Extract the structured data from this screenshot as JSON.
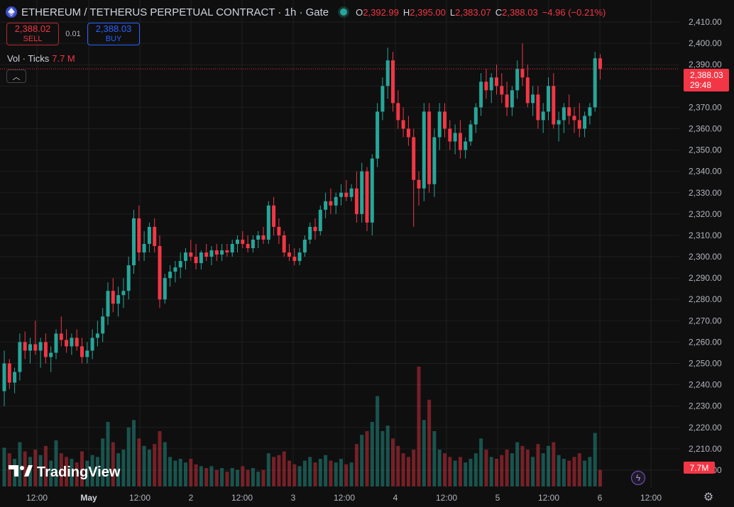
{
  "header": {
    "title": "ETHEREUM / TETHERUS PERPETUAL CONTRACT · 1h · Gate",
    "ohlc": [
      {
        "key": "O",
        "value": "2,392.99"
      },
      {
        "key": "H",
        "value": "2,395.00"
      },
      {
        "key": "L",
        "value": "2,383.07"
      },
      {
        "key": "C",
        "value": "2,388.03"
      }
    ],
    "change": "−4.96 (−0.21%)"
  },
  "trade": {
    "sell_price": "2,388.02",
    "sell_label": "SELL",
    "spread": "0.01",
    "buy_price": "2,388.03",
    "buy_label": "BUY"
  },
  "volume_legend": {
    "label": "Vol · Ticks",
    "value": "7.7 M"
  },
  "price_badge": {
    "price": "2,388.03",
    "countdown": "29:48"
  },
  "volume_badge": "7.7M",
  "brand": "TradingView",
  "colors": {
    "up": "#26a69a",
    "down": "#f23645",
    "background": "#0f0f0f",
    "grid": "#1f1f1f"
  },
  "icons": [
    "ethereum-icon",
    "live-status-icon",
    "collapse-icon",
    "flash-icon",
    "settings-icon"
  ],
  "chart_data": {
    "type": "candlestick",
    "interval": "1h",
    "price_axis_ticks": [
      "2,410.00",
      "2,400.00",
      "2,390.00",
      "2,380.00",
      "2,370.00",
      "2,360.00",
      "2,350.00",
      "2,340.00",
      "2,330.00",
      "2,320.00",
      "2,310.00",
      "2,300.00",
      "2,290.00",
      "2,280.00",
      "2,270.00",
      "2,260.00",
      "2,250.00",
      "2,240.00",
      "2,230.00",
      "2,220.00",
      "2,210.00",
      "2,200.00"
    ],
    "time_axis_ticks": [
      "12:00",
      "May",
      "12:00",
      "2",
      "12:00",
      "3",
      "12:00",
      "4",
      "12:00",
      "5",
      "12:00",
      "6",
      "12:00"
    ],
    "ylim": [
      2200,
      2410
    ],
    "last_price": 2388.03,
    "candles": [
      {
        "o": 2237,
        "h": 2256,
        "l": 2230,
        "c": 2250,
        "v": 2.1
      },
      {
        "o": 2250,
        "h": 2252,
        "l": 2238,
        "c": 2241,
        "v": 1.8
      },
      {
        "o": 2241,
        "h": 2248,
        "l": 2236,
        "c": 2246,
        "v": 1.5
      },
      {
        "o": 2246,
        "h": 2264,
        "l": 2242,
        "c": 2260,
        "v": 2.4
      },
      {
        "o": 2260,
        "h": 2265,
        "l": 2252,
        "c": 2256,
        "v": 1.9
      },
      {
        "o": 2256,
        "h": 2262,
        "l": 2250,
        "c": 2259,
        "v": 1.6
      },
      {
        "o": 2259,
        "h": 2270,
        "l": 2254,
        "c": 2256,
        "v": 2.0
      },
      {
        "o": 2256,
        "h": 2262,
        "l": 2248,
        "c": 2260,
        "v": 1.7
      },
      {
        "o": 2260,
        "h": 2264,
        "l": 2250,
        "c": 2253,
        "v": 2.2
      },
      {
        "o": 2253,
        "h": 2258,
        "l": 2246,
        "c": 2255,
        "v": 1.4
      },
      {
        "o": 2255,
        "h": 2266,
        "l": 2252,
        "c": 2264,
        "v": 2.5
      },
      {
        "o": 2264,
        "h": 2272,
        "l": 2258,
        "c": 2261,
        "v": 1.8
      },
      {
        "o": 2261,
        "h": 2266,
        "l": 2255,
        "c": 2258,
        "v": 1.6
      },
      {
        "o": 2258,
        "h": 2264,
        "l": 2254,
        "c": 2262,
        "v": 1.5
      },
      {
        "o": 2262,
        "h": 2266,
        "l": 2256,
        "c": 2258,
        "v": 1.3
      },
      {
        "o": 2258,
        "h": 2262,
        "l": 2250,
        "c": 2253,
        "v": 1.9
      },
      {
        "o": 2253,
        "h": 2260,
        "l": 2250,
        "c": 2256,
        "v": 1.4
      },
      {
        "o": 2256,
        "h": 2266,
        "l": 2252,
        "c": 2262,
        "v": 1.7
      },
      {
        "o": 2262,
        "h": 2270,
        "l": 2258,
        "c": 2264,
        "v": 1.6
      },
      {
        "o": 2264,
        "h": 2276,
        "l": 2260,
        "c": 2272,
        "v": 2.6
      },
      {
        "o": 2272,
        "h": 2288,
        "l": 2268,
        "c": 2284,
        "v": 3.5
      },
      {
        "o": 2284,
        "h": 2290,
        "l": 2274,
        "c": 2278,
        "v": 2.4
      },
      {
        "o": 2278,
        "h": 2286,
        "l": 2272,
        "c": 2282,
        "v": 1.8
      },
      {
        "o": 2282,
        "h": 2290,
        "l": 2276,
        "c": 2284,
        "v": 2.0
      },
      {
        "o": 2284,
        "h": 2300,
        "l": 2280,
        "c": 2296,
        "v": 3.2
      },
      {
        "o": 2296,
        "h": 2322,
        "l": 2292,
        "c": 2318,
        "v": 3.6
      },
      {
        "o": 2318,
        "h": 2324,
        "l": 2298,
        "c": 2302,
        "v": 2.6
      },
      {
        "o": 2302,
        "h": 2312,
        "l": 2298,
        "c": 2306,
        "v": 2.2
      },
      {
        "o": 2306,
        "h": 2316,
        "l": 2302,
        "c": 2314,
        "v": 2.0
      },
      {
        "o": 2314,
        "h": 2318,
        "l": 2302,
        "c": 2305,
        "v": 2.3
      },
      {
        "o": 2305,
        "h": 2310,
        "l": 2276,
        "c": 2280,
        "v": 3.0
      },
      {
        "o": 2280,
        "h": 2292,
        "l": 2278,
        "c": 2290,
        "v": 2.4
      },
      {
        "o": 2290,
        "h": 2296,
        "l": 2286,
        "c": 2293,
        "v": 1.6
      },
      {
        "o": 2293,
        "h": 2298,
        "l": 2288,
        "c": 2295,
        "v": 1.4
      },
      {
        "o": 2295,
        "h": 2302,
        "l": 2290,
        "c": 2298,
        "v": 1.5
      },
      {
        "o": 2298,
        "h": 2304,
        "l": 2294,
        "c": 2302,
        "v": 1.3
      },
      {
        "o": 2302,
        "h": 2308,
        "l": 2298,
        "c": 2300,
        "v": 1.5
      },
      {
        "o": 2300,
        "h": 2306,
        "l": 2294,
        "c": 2297,
        "v": 1.2
      },
      {
        "o": 2297,
        "h": 2303,
        "l": 2294,
        "c": 2302,
        "v": 1.1
      },
      {
        "o": 2302,
        "h": 2306,
        "l": 2298,
        "c": 2300,
        "v": 1.0
      },
      {
        "o": 2300,
        "h": 2305,
        "l": 2296,
        "c": 2303,
        "v": 1.1
      },
      {
        "o": 2303,
        "h": 2306,
        "l": 2298,
        "c": 2301,
        "v": 0.9
      },
      {
        "o": 2301,
        "h": 2306,
        "l": 2298,
        "c": 2303,
        "v": 1.0
      },
      {
        "o": 2303,
        "h": 2306,
        "l": 2300,
        "c": 2302,
        "v": 0.8
      },
      {
        "o": 2302,
        "h": 2308,
        "l": 2300,
        "c": 2306,
        "v": 1.0
      },
      {
        "o": 2306,
        "h": 2310,
        "l": 2302,
        "c": 2308,
        "v": 0.9
      },
      {
        "o": 2308,
        "h": 2312,
        "l": 2304,
        "c": 2306,
        "v": 1.1
      },
      {
        "o": 2306,
        "h": 2310,
        "l": 2302,
        "c": 2304,
        "v": 0.9
      },
      {
        "o": 2304,
        "h": 2310,
        "l": 2302,
        "c": 2308,
        "v": 1.0
      },
      {
        "o": 2308,
        "h": 2312,
        "l": 2304,
        "c": 2310,
        "v": 0.8
      },
      {
        "o": 2310,
        "h": 2314,
        "l": 2306,
        "c": 2308,
        "v": 0.9
      },
      {
        "o": 2308,
        "h": 2326,
        "l": 2306,
        "c": 2324,
        "v": 1.8
      },
      {
        "o": 2324,
        "h": 2328,
        "l": 2310,
        "c": 2314,
        "v": 1.6
      },
      {
        "o": 2314,
        "h": 2318,
        "l": 2306,
        "c": 2310,
        "v": 1.7
      },
      {
        "o": 2310,
        "h": 2312,
        "l": 2300,
        "c": 2302,
        "v": 1.9
      },
      {
        "o": 2302,
        "h": 2306,
        "l": 2298,
        "c": 2300,
        "v": 1.4
      },
      {
        "o": 2300,
        "h": 2304,
        "l": 2296,
        "c": 2298,
        "v": 1.2
      },
      {
        "o": 2298,
        "h": 2304,
        "l": 2296,
        "c": 2302,
        "v": 1.1
      },
      {
        "o": 2302,
        "h": 2310,
        "l": 2300,
        "c": 2308,
        "v": 1.4
      },
      {
        "o": 2308,
        "h": 2316,
        "l": 2306,
        "c": 2314,
        "v": 1.6
      },
      {
        "o": 2314,
        "h": 2318,
        "l": 2308,
        "c": 2312,
        "v": 1.3
      },
      {
        "o": 2312,
        "h": 2324,
        "l": 2310,
        "c": 2322,
        "v": 1.5
      },
      {
        "o": 2322,
        "h": 2330,
        "l": 2318,
        "c": 2326,
        "v": 1.7
      },
      {
        "o": 2326,
        "h": 2332,
        "l": 2320,
        "c": 2324,
        "v": 1.4
      },
      {
        "o": 2324,
        "h": 2330,
        "l": 2320,
        "c": 2328,
        "v": 1.3
      },
      {
        "o": 2328,
        "h": 2334,
        "l": 2324,
        "c": 2330,
        "v": 1.5
      },
      {
        "o": 2330,
        "h": 2336,
        "l": 2326,
        "c": 2328,
        "v": 1.2
      },
      {
        "o": 2328,
        "h": 2334,
        "l": 2326,
        "c": 2332,
        "v": 1.3
      },
      {
        "o": 2332,
        "h": 2340,
        "l": 2316,
        "c": 2320,
        "v": 2.3
      },
      {
        "o": 2320,
        "h": 2344,
        "l": 2316,
        "c": 2340,
        "v": 2.8
      },
      {
        "o": 2340,
        "h": 2342,
        "l": 2312,
        "c": 2316,
        "v": 3.0
      },
      {
        "o": 2316,
        "h": 2348,
        "l": 2310,
        "c": 2346,
        "v": 3.5
      },
      {
        "o": 2346,
        "h": 2372,
        "l": 2342,
        "c": 2368,
        "v": 4.9
      },
      {
        "o": 2368,
        "h": 2384,
        "l": 2364,
        "c": 2380,
        "v": 3.0
      },
      {
        "o": 2380,
        "h": 2398,
        "l": 2374,
        "c": 2392,
        "v": 3.3
      },
      {
        "o": 2392,
        "h": 2396,
        "l": 2368,
        "c": 2372,
        "v": 2.6
      },
      {
        "o": 2372,
        "h": 2378,
        "l": 2360,
        "c": 2364,
        "v": 2.2
      },
      {
        "o": 2364,
        "h": 2370,
        "l": 2356,
        "c": 2360,
        "v": 1.8
      },
      {
        "o": 2360,
        "h": 2366,
        "l": 2352,
        "c": 2356,
        "v": 1.6
      },
      {
        "o": 2356,
        "h": 2360,
        "l": 2314,
        "c": 2336,
        "v": 2.0
      },
      {
        "o": 2336,
        "h": 2340,
        "l": 2324,
        "c": 2332,
        "v": 6.5
      },
      {
        "o": 2332,
        "h": 2372,
        "l": 2326,
        "c": 2368,
        "v": 3.6
      },
      {
        "o": 2368,
        "h": 2372,
        "l": 2330,
        "c": 2334,
        "v": 4.7
      },
      {
        "o": 2334,
        "h": 2360,
        "l": 2328,
        "c": 2356,
        "v": 3.0
      },
      {
        "o": 2356,
        "h": 2372,
        "l": 2350,
        "c": 2368,
        "v": 2.0
      },
      {
        "o": 2368,
        "h": 2372,
        "l": 2356,
        "c": 2360,
        "v": 1.8
      },
      {
        "o": 2360,
        "h": 2364,
        "l": 2350,
        "c": 2354,
        "v": 1.6
      },
      {
        "o": 2354,
        "h": 2362,
        "l": 2348,
        "c": 2358,
        "v": 1.4
      },
      {
        "o": 2358,
        "h": 2364,
        "l": 2346,
        "c": 2350,
        "v": 1.6
      },
      {
        "o": 2350,
        "h": 2356,
        "l": 2346,
        "c": 2354,
        "v": 1.3
      },
      {
        "o": 2354,
        "h": 2364,
        "l": 2352,
        "c": 2362,
        "v": 1.5
      },
      {
        "o": 2362,
        "h": 2372,
        "l": 2358,
        "c": 2370,
        "v": 1.8
      },
      {
        "o": 2370,
        "h": 2386,
        "l": 2366,
        "c": 2382,
        "v": 2.6
      },
      {
        "o": 2382,
        "h": 2388,
        "l": 2374,
        "c": 2378,
        "v": 2.0
      },
      {
        "o": 2378,
        "h": 2386,
        "l": 2372,
        "c": 2384,
        "v": 1.6
      },
      {
        "o": 2384,
        "h": 2390,
        "l": 2376,
        "c": 2380,
        "v": 1.5
      },
      {
        "o": 2380,
        "h": 2386,
        "l": 2372,
        "c": 2376,
        "v": 1.7
      },
      {
        "o": 2376,
        "h": 2382,
        "l": 2366,
        "c": 2370,
        "v": 2.0
      },
      {
        "o": 2370,
        "h": 2380,
        "l": 2366,
        "c": 2378,
        "v": 1.8
      },
      {
        "o": 2378,
        "h": 2392,
        "l": 2374,
        "c": 2388,
        "v": 2.4
      },
      {
        "o": 2388,
        "h": 2400,
        "l": 2380,
        "c": 2384,
        "v": 2.2
      },
      {
        "o": 2384,
        "h": 2390,
        "l": 2370,
        "c": 2372,
        "v": 2.0
      },
      {
        "o": 2372,
        "h": 2380,
        "l": 2366,
        "c": 2376,
        "v": 1.6
      },
      {
        "o": 2376,
        "h": 2380,
        "l": 2360,
        "c": 2364,
        "v": 2.3
      },
      {
        "o": 2364,
        "h": 2372,
        "l": 2358,
        "c": 2368,
        "v": 1.8
      },
      {
        "o": 2368,
        "h": 2384,
        "l": 2364,
        "c": 2380,
        "v": 2.2
      },
      {
        "o": 2380,
        "h": 2386,
        "l": 2360,
        "c": 2362,
        "v": 2.4
      },
      {
        "o": 2362,
        "h": 2368,
        "l": 2354,
        "c": 2364,
        "v": 1.7
      },
      {
        "o": 2364,
        "h": 2372,
        "l": 2358,
        "c": 2370,
        "v": 1.5
      },
      {
        "o": 2370,
        "h": 2376,
        "l": 2362,
        "c": 2366,
        "v": 1.4
      },
      {
        "o": 2366,
        "h": 2370,
        "l": 2358,
        "c": 2364,
        "v": 1.6
      },
      {
        "o": 2364,
        "h": 2372,
        "l": 2356,
        "c": 2360,
        "v": 1.8
      },
      {
        "o": 2360,
        "h": 2368,
        "l": 2356,
        "c": 2366,
        "v": 1.4
      },
      {
        "o": 2366,
        "h": 2372,
        "l": 2362,
        "c": 2370,
        "v": 1.6
      },
      {
        "o": 2370,
        "h": 2396,
        "l": 2368,
        "c": 2393,
        "v": 2.9
      },
      {
        "o": 2392.99,
        "h": 2395,
        "l": 2383.07,
        "c": 2388.03,
        "v": 0.9
      }
    ]
  }
}
